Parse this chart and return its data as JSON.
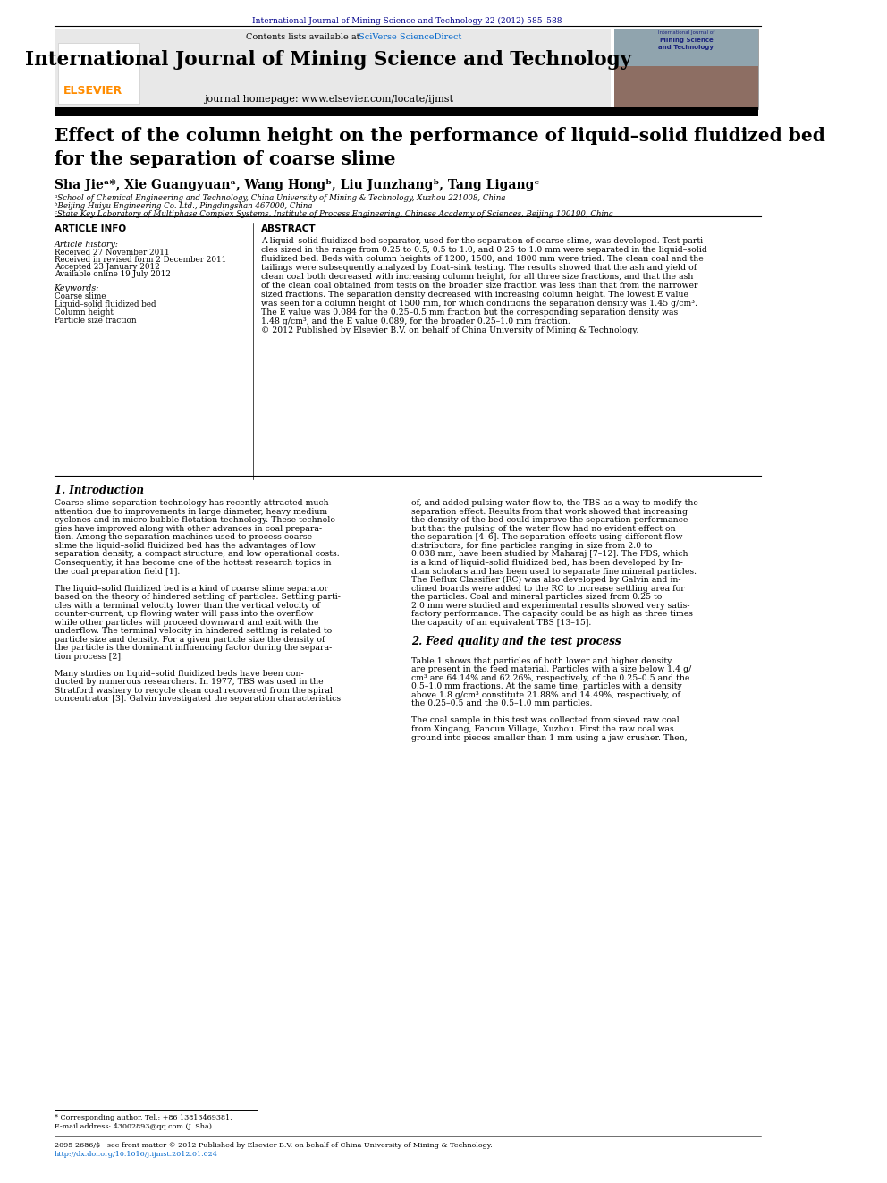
{
  "page_width": 9.92,
  "page_height": 13.23,
  "bg_color": "#ffffff",
  "top_journal_ref": "International Journal of Mining Science and Technology 22 (2012) 585–588",
  "top_journal_ref_color": "#00008B",
  "header_bg_color": "#e8e8e8",
  "header_journal_title": "International Journal of Mining Science and Technology",
  "header_homepage": "journal homepage: www.elsevier.com/locate/ijmst",
  "header_contents": "Contents lists available at ",
  "header_contents_link": "SciVerse ScienceDirect",
  "elsevier_color": "#FF8C00",
  "article_title": "Effect of the column height on the performance of liquid–solid fluidized bed\nfor the separation of coarse slime",
  "authors": "Sha Jieᵃ*, Xie Guangyuanᵃ, Wang Hongᵇ, Liu Junzhangᵇ, Tang Ligangᶜ",
  "affil_a": "ᵃSchool of Chemical Engineering and Technology, China University of Mining & Technology, Xuzhou 221008, China",
  "affil_b": "ᵇBeijing Huiyu Engineering Co. Ltd., Pingdingshan 467000, China",
  "affil_c": "ᶜState Key Laboratory of Multiphase Complex Systems, Institute of Process Engineering, Chinese Academy of Sciences, Beijing 100190, China",
  "section_article_info": "ARTICLE INFO",
  "section_abstract": "ABSTRACT",
  "article_history_label": "Article history:",
  "received_label": "Received 27 November 2011",
  "revised_label": "Received in revised form 2 December 2011",
  "accepted_label": "Accepted 23 January 2012",
  "online_label": "Available online 19 July 2012",
  "keywords_label": "Keywords:",
  "keywords": [
    "Coarse slime",
    "Liquid–solid fluidized bed",
    "Column height",
    "Particle size fraction"
  ],
  "footer_text1": "* Corresponding author. Tel.: +86 13813469381.",
  "footer_text2": "E-mail address: 43002893@qq.com (J. Sha).",
  "footer_text3": "2095-2686/$ - see front matter © 2012 Published by Elsevier B.V. on behalf of China University of Mining & Technology.",
  "footer_text4": "http://dx.doi.org/10.1016/j.ijmst.2012.01.024",
  "link_color": "#0066cc",
  "dark_blue": "#00008B"
}
